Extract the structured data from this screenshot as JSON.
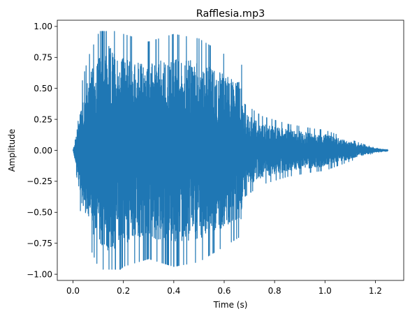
{
  "chart_data": {
    "type": "line",
    "title": "Rafflesia.mp3",
    "xlabel": "Time (s)",
    "ylabel": "Amplitude",
    "xlim": [
      -0.0625,
      1.3125
    ],
    "ylim": [
      -1.05,
      1.05
    ],
    "xticks": [
      0.0,
      0.2,
      0.4,
      0.6,
      0.8,
      1.0,
      1.2
    ],
    "xtick_labels": [
      "0.0",
      "0.2",
      "0.4",
      "0.6",
      "0.8",
      "1.0",
      "1.2"
    ],
    "yticks": [
      1.0,
      0.75,
      0.5,
      0.25,
      0.0,
      -0.25,
      -0.5,
      -0.75,
      -1.0
    ],
    "ytick_labels": [
      "1.00",
      "0.75",
      "0.50",
      "0.25",
      "0.00",
      "−0.25",
      "−0.50",
      "−0.75",
      "−1.00"
    ],
    "grid": false,
    "series": [
      {
        "color": "#1f77b4",
        "duration_s": 1.25,
        "envelope": {
          "t": [
            0.0,
            0.01,
            0.03,
            0.06,
            0.1,
            0.14,
            0.2,
            0.3,
            0.4,
            0.5,
            0.6,
            0.67,
            0.68,
            0.75,
            0.85,
            0.95,
            1.0,
            1.05,
            1.1,
            1.15,
            1.2,
            1.25
          ],
          "amplitude": [
            0.0,
            0.1,
            0.4,
            0.6,
            0.75,
            0.85,
            0.75,
            0.7,
            0.75,
            0.72,
            0.62,
            0.55,
            0.3,
            0.22,
            0.17,
            0.14,
            0.13,
            0.1,
            0.07,
            0.04,
            0.015,
            0.005
          ]
        }
      }
    ]
  }
}
